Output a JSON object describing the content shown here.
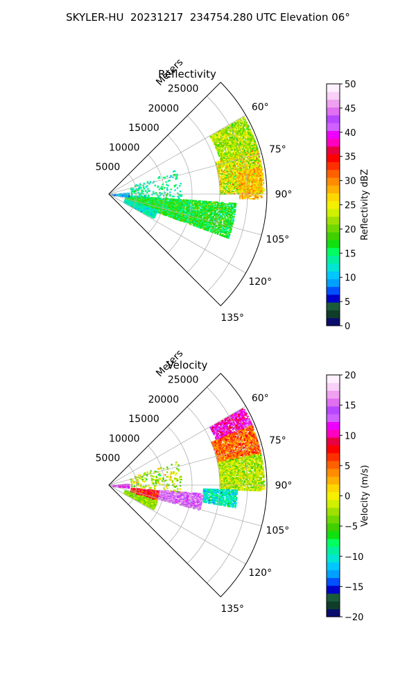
{
  "suptitle": "SKYLER-HU  20231217  234754.280 UTC Elevation 06°",
  "chart_data": [
    {
      "type": "radar-ppi-sector",
      "title": "Reflectivity",
      "range_axis_label": "Meters",
      "range_ticks": [
        "5000",
        "10000",
        "15000",
        "20000",
        "25000"
      ],
      "range_max": 28500,
      "azimuth_ticks": [
        "60°",
        "75°",
        "90°",
        "105°",
        "120°",
        "135°"
      ],
      "azimuth_range_deg": [
        45,
        135
      ],
      "colorbar": {
        "label": "Reflectivity dBZ",
        "vmin": 0,
        "vmax": 50,
        "ticks": [
          "0",
          "5",
          "10",
          "15",
          "20",
          "25",
          "30",
          "35",
          "40",
          "45",
          "50"
        ],
        "palette": [
          "#0a0d6b",
          "#0f3d2a",
          "#1a5c3a",
          "#0000c8",
          "#0050ff",
          "#00a0ff",
          "#00c8ff",
          "#00e6d2",
          "#00f0a0",
          "#00ff60",
          "#10e010",
          "#40d000",
          "#70d800",
          "#a0e000",
          "#d0f000",
          "#f5f000",
          "#ffd700",
          "#ffb000",
          "#ff8c00",
          "#ff6000",
          "#ff3000",
          "#ff0000",
          "#e80040",
          "#ff00c0",
          "#ee00ff",
          "#d060ff",
          "#b848ff",
          "#e070f0",
          "#f0a0f0",
          "#f8d0f8",
          "#fff0ff"
        ]
      },
      "echo_regions": [
        {
          "az": [
            60,
            74
          ],
          "r": [
            21000,
            28000
          ],
          "value": 22,
          "spread": 4,
          "density": 0.85
        },
        {
          "az": [
            73,
            90
          ],
          "r": [
            20000,
            28000
          ],
          "value": 24,
          "spread": 6,
          "density": 0.85
        },
        {
          "az": [
            80,
            92
          ],
          "r": [
            23500,
            27500
          ],
          "value": 28,
          "spread": 3,
          "density": 0.7
        },
        {
          "az": [
            94,
            110
          ],
          "r": [
            3000,
            23000
          ],
          "value": 17,
          "spread": 4,
          "density": 0.75
        },
        {
          "az": [
            108,
            118
          ],
          "r": [
            3000,
            9000
          ],
          "value": 13,
          "spread": 3,
          "density": 0.7
        },
        {
          "az": [
            86,
            96
          ],
          "r": [
            500,
            3500
          ],
          "value": 10,
          "spread": 3,
          "density": 0.7
        },
        {
          "az": [
            70,
            95
          ],
          "r": [
            4000,
            13000
          ],
          "value": 14,
          "spread": 3,
          "density": 0.1
        }
      ]
    },
    {
      "type": "radar-ppi-sector",
      "title": "Velocity",
      "range_axis_label": "Meters",
      "range_ticks": [
        "5000",
        "10000",
        "15000",
        "20000",
        "25000"
      ],
      "range_max": 28500,
      "azimuth_ticks": [
        "60°",
        "75°",
        "90°",
        "105°",
        "120°",
        "135°"
      ],
      "azimuth_range_deg": [
        45,
        135
      ],
      "colorbar": {
        "label": "Velocity (m/s)",
        "vmin": -20,
        "vmax": 20,
        "ticks": [
          "−20",
          "−15",
          "−10",
          "−5",
          "0",
          "5",
          "10",
          "15",
          "20"
        ],
        "palette": [
          "#0a0d6b",
          "#0f3d2a",
          "#1a5c3a",
          "#0000c8",
          "#0050ff",
          "#00a0ff",
          "#00c8ff",
          "#00e6d2",
          "#00f0a0",
          "#00ff60",
          "#10e010",
          "#40d000",
          "#70d800",
          "#a0e000",
          "#d0f000",
          "#f5f000",
          "#ffd700",
          "#ffb000",
          "#ff8c00",
          "#ff6000",
          "#ff3000",
          "#ff0000",
          "#e80040",
          "#ff00c0",
          "#ee00ff",
          "#d060ff",
          "#b848ff",
          "#e070f0",
          "#f0a0f0",
          "#f8d0f8",
          "#fff0ff"
        ]
      },
      "echo_regions": [
        {
          "az": [
            60,
            68
          ],
          "r": [
            21000,
            28000
          ],
          "value": 11,
          "spread": 3,
          "density": 0.85
        },
        {
          "az": [
            67,
            78
          ],
          "r": [
            20000,
            28000
          ],
          "value": 5,
          "spread": 3,
          "density": 0.85
        },
        {
          "az": [
            78,
            92
          ],
          "r": [
            20000,
            28000
          ],
          "value": -2,
          "spread": 3,
          "density": 0.85
        },
        {
          "az": [
            92,
            100
          ],
          "r": [
            17000,
            23000
          ],
          "value": -10,
          "spread": 3,
          "density": 0.8
        },
        {
          "az": [
            95,
            105
          ],
          "r": [
            9000,
            17000
          ],
          "value": 15,
          "spread": 3,
          "density": 0.8
        },
        {
          "az": [
            96,
            108
          ],
          "r": [
            4000,
            9000
          ],
          "value": 7,
          "spread": 4,
          "density": 0.8
        },
        {
          "az": [
            108,
            118
          ],
          "r": [
            3000,
            9000
          ],
          "value": -3,
          "spread": 3,
          "density": 0.7
        },
        {
          "az": [
            86,
            96
          ],
          "r": [
            500,
            3500
          ],
          "value": 13,
          "spread": 3,
          "density": 0.7
        },
        {
          "az": [
            70,
            95
          ],
          "r": [
            4000,
            13000
          ],
          "value": -2,
          "spread": 4,
          "density": 0.1
        }
      ]
    }
  ]
}
